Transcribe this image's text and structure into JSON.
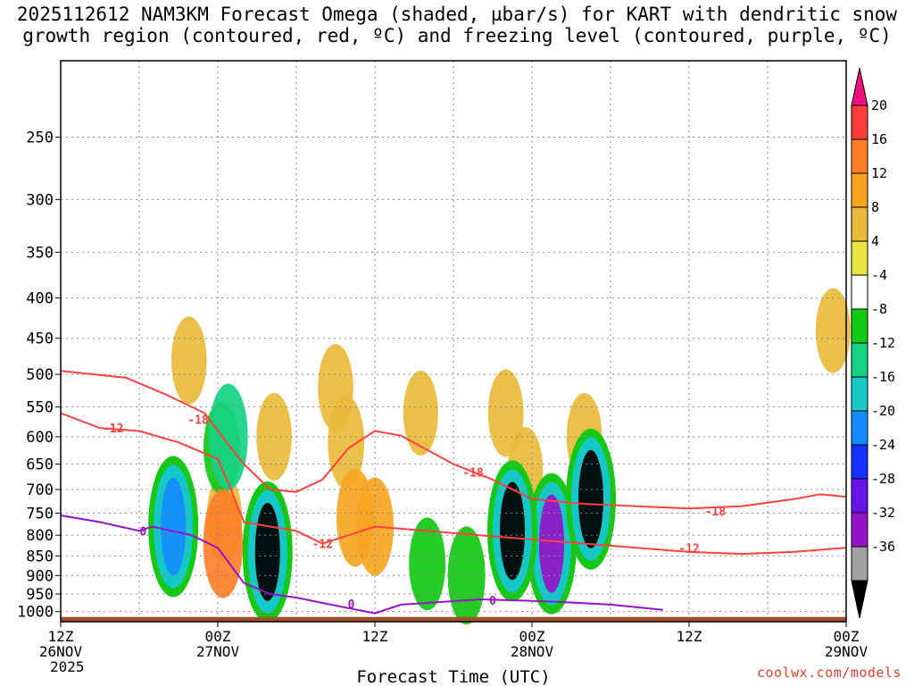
{
  "title": {
    "line1": "2025112612 NAM3KM Forecast Omega (shaded, µbar/s) for KART with dendritic snow",
    "line2": "growth region (contoured, red, ºC) and freezing level (contoured, purple, ºC)"
  },
  "credit": "coolwx.com/models",
  "chart_data": {
    "type": "heatmap",
    "xlabel": "Forecast Time (UTC)",
    "ylabel": "",
    "x_range_hours": [
      0,
      60
    ],
    "y_range_hpa": [
      200,
      1030
    ],
    "grid": true,
    "legend": "right",
    "x_ticks": [
      {
        "hour": 0,
        "label": "12Z",
        "sub": "26NOV",
        "sub2": "2025"
      },
      {
        "hour": 12,
        "label": "00Z",
        "sub": "27NOV",
        "sub2": ""
      },
      {
        "hour": 24,
        "label": "12Z",
        "sub": "",
        "sub2": ""
      },
      {
        "hour": 36,
        "label": "00Z",
        "sub": "28NOV",
        "sub2": ""
      },
      {
        "hour": 48,
        "label": "12Z",
        "sub": "",
        "sub2": ""
      },
      {
        "hour": 60,
        "label": "00Z",
        "sub": "29NOV",
        "sub2": ""
      }
    ],
    "y_ticks": [
      250,
      300,
      350,
      400,
      450,
      500,
      550,
      600,
      650,
      700,
      750,
      800,
      850,
      900,
      950,
      1000
    ],
    "colorbar": {
      "labels": [
        "20",
        "16",
        "12",
        "8",
        "4",
        "-4",
        "-8",
        "-12",
        "-16",
        "-20",
        "-24",
        "-28",
        "-32",
        "-36"
      ],
      "values": [
        20,
        16,
        12,
        8,
        4,
        -4,
        -8,
        -12,
        -16,
        -20,
        -24,
        -28,
        -32,
        -36
      ],
      "colors": [
        "#f00f7e",
        "#ff3c3c",
        "#ff7f27",
        "#f7a521",
        "#e8bb3c",
        "#ece445",
        "#ffffff",
        "#14c814",
        "#14d282",
        "#14c8c8",
        "#148cff",
        "#1432ff",
        "#6414e6",
        "#9614c8",
        "#a0a0a0",
        "#000000"
      ]
    },
    "colors": {
      "ground": "#a0522d",
      "red_contour": "#ff4040",
      "purple_contour": "#9614c8"
    },
    "omega_blobs": [
      {
        "t": 1.5,
        "p": 600,
        "value": -6
      },
      {
        "t": 1.8,
        "p": 400,
        "value": -6
      },
      {
        "t": 7.5,
        "p": 760,
        "value": -7
      },
      {
        "t": 8.2,
        "p": 780,
        "value": -12
      },
      {
        "t": 8.6,
        "p": 780,
        "value": -22
      },
      {
        "t": 9.8,
        "p": 480,
        "value": 6
      },
      {
        "t": 12.3,
        "p": 620,
        "value": -8
      },
      {
        "t": 12.8,
        "p": 600,
        "value": -13
      },
      {
        "t": 12.5,
        "p": 760,
        "value": 6
      },
      {
        "t": 12.4,
        "p": 820,
        "value": 14
      },
      {
        "t": 12.9,
        "p": 380,
        "value": -6
      },
      {
        "t": 14.8,
        "p": 450,
        "value": -6
      },
      {
        "t": 15.5,
        "p": 820,
        "value": -14
      },
      {
        "t": 15.8,
        "p": 840,
        "value": -40
      },
      {
        "t": 16.3,
        "p": 600,
        "value": 6
      },
      {
        "t": 19.2,
        "p": 350,
        "value": -6
      },
      {
        "t": 21.0,
        "p": 520,
        "value": 6
      },
      {
        "t": 22.5,
        "p": 760,
        "value": 10
      },
      {
        "t": 21.8,
        "p": 610,
        "value": 8
      },
      {
        "t": 24.0,
        "p": 780,
        "value": 10
      },
      {
        "t": 27.5,
        "p": 560,
        "value": 5
      },
      {
        "t": 28.0,
        "p": 870,
        "value": -8
      },
      {
        "t": 31.0,
        "p": 900,
        "value": -10
      },
      {
        "t": 34.0,
        "p": 560,
        "value": 6
      },
      {
        "t": 34.5,
        "p": 790,
        "value": -40
      },
      {
        "t": 35.5,
        "p": 660,
        "value": 5
      },
      {
        "t": 37.5,
        "p": 820,
        "value": -34
      },
      {
        "t": 40.0,
        "p": 600,
        "value": 6
      },
      {
        "t": 40.5,
        "p": 720,
        "value": -40
      },
      {
        "t": 44.0,
        "p": 760,
        "value": -6
      },
      {
        "t": 56.0,
        "p": 790,
        "value": -6
      },
      {
        "t": 59.0,
        "p": 440,
        "value": 5
      }
    ],
    "red_contour_labels": [
      {
        "t": 10.5,
        "p": 570,
        "label": "-18"
      },
      {
        "t": 4.0,
        "p": 585,
        "label": "-12"
      },
      {
        "t": 31.5,
        "p": 665,
        "label": "-18"
      },
      {
        "t": 20.0,
        "p": 820,
        "label": "-12"
      },
      {
        "t": 50.0,
        "p": 745,
        "label": "-18"
      },
      {
        "t": 48.0,
        "p": 830,
        "label": "-12"
      }
    ],
    "red_contours": [
      {
        "name": "-18 upper",
        "points": [
          [
            0,
            495
          ],
          [
            5,
            505
          ],
          [
            8,
            530
          ],
          [
            11,
            560
          ],
          [
            13,
            620
          ],
          [
            14,
            650
          ],
          [
            16,
            700
          ],
          [
            18,
            705
          ],
          [
            20,
            680
          ],
          [
            22,
            620
          ],
          [
            24,
            590
          ],
          [
            26,
            598
          ],
          [
            30,
            650
          ],
          [
            33,
            680
          ],
          [
            36,
            720
          ],
          [
            40,
            730
          ],
          [
            44,
            735
          ],
          [
            48,
            740
          ],
          [
            52,
            735
          ],
          [
            56,
            720
          ],
          [
            58,
            710
          ],
          [
            60,
            715
          ]
        ]
      },
      {
        "name": "-12 lower",
        "points": [
          [
            0,
            560
          ],
          [
            3,
            585
          ],
          [
            6,
            590
          ],
          [
            9,
            610
          ],
          [
            12,
            640
          ],
          [
            13,
            700
          ],
          [
            14,
            770
          ],
          [
            16,
            780
          ],
          [
            18,
            790
          ],
          [
            20,
            820
          ],
          [
            22,
            800
          ],
          [
            24,
            780
          ],
          [
            28,
            790
          ],
          [
            32,
            800
          ],
          [
            36,
            810
          ],
          [
            40,
            820
          ],
          [
            44,
            830
          ],
          [
            48,
            840
          ],
          [
            52,
            845
          ],
          [
            56,
            840
          ],
          [
            60,
            830
          ]
        ]
      }
    ],
    "purple_contours": [
      {
        "name": "0 freezing",
        "points": [
          [
            0,
            755
          ],
          [
            3,
            770
          ],
          [
            6,
            790
          ],
          [
            7,
            780
          ],
          [
            10,
            800
          ],
          [
            12,
            830
          ],
          [
            14,
            920
          ],
          [
            16,
            950
          ],
          [
            18,
            960
          ],
          [
            20,
            975
          ],
          [
            22,
            990
          ],
          [
            24,
            1005
          ],
          [
            26,
            980
          ],
          [
            28,
            975
          ],
          [
            30,
            970
          ],
          [
            32,
            965
          ],
          [
            35,
            968
          ],
          [
            38,
            972
          ],
          [
            42,
            980
          ],
          [
            46,
            995
          ]
        ]
      }
    ],
    "purple_contour_labels": [
      {
        "t": 6.3,
        "p": 790,
        "label": "0"
      },
      {
        "t": 22.2,
        "p": 978,
        "label": "0"
      },
      {
        "t": 33.0,
        "p": 968,
        "label": "0"
      }
    ]
  }
}
